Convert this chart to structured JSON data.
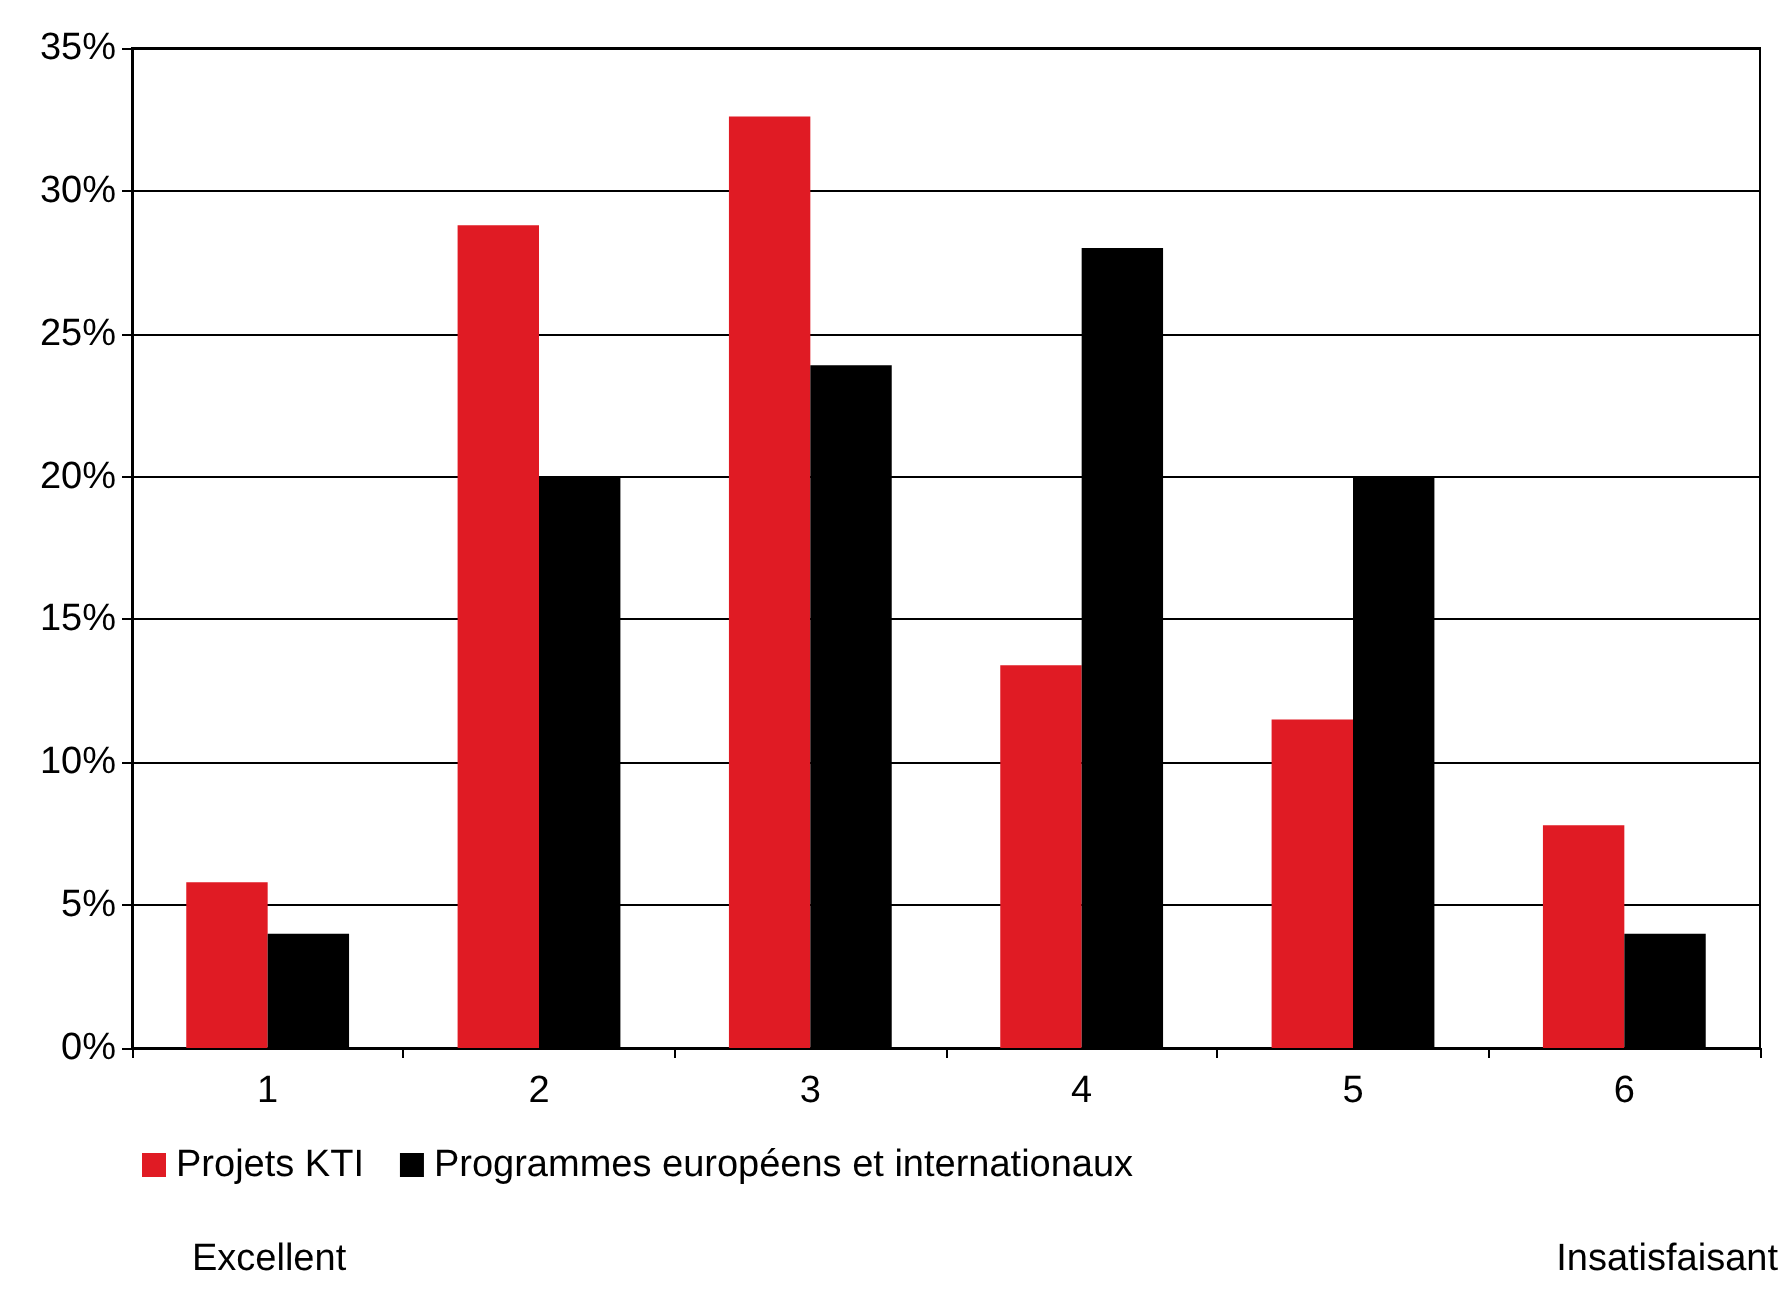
{
  "chart_data": {
    "type": "bar",
    "categories": [
      "1",
      "2",
      "3",
      "4",
      "5",
      "6"
    ],
    "series": [
      {
        "name": "Projets KTI",
        "color": "#e01b24",
        "values": [
          5.8,
          28.8,
          32.6,
          13.4,
          11.5,
          7.8
        ]
      },
      {
        "name": "Programmes européens et internationaux",
        "color": "#000000",
        "values": [
          4,
          20,
          23.9,
          28,
          20,
          4
        ]
      }
    ],
    "ylim": [
      0,
      35
    ],
    "yticks": [
      {
        "value": 0,
        "label": "0%"
      },
      {
        "value": 5,
        "label": "5%"
      },
      {
        "value": 10,
        "label": "10%"
      },
      {
        "value": 15,
        "label": "15%"
      },
      {
        "value": 20,
        "label": "20%"
      },
      {
        "value": 25,
        "label": "25%"
      },
      {
        "value": 30,
        "label": "30%"
      },
      {
        "value": 35,
        "label": "35%"
      }
    ],
    "grid": "y",
    "legend": "bottom left",
    "annotations": [
      "Excellent",
      "Insatisfaisant"
    ]
  }
}
